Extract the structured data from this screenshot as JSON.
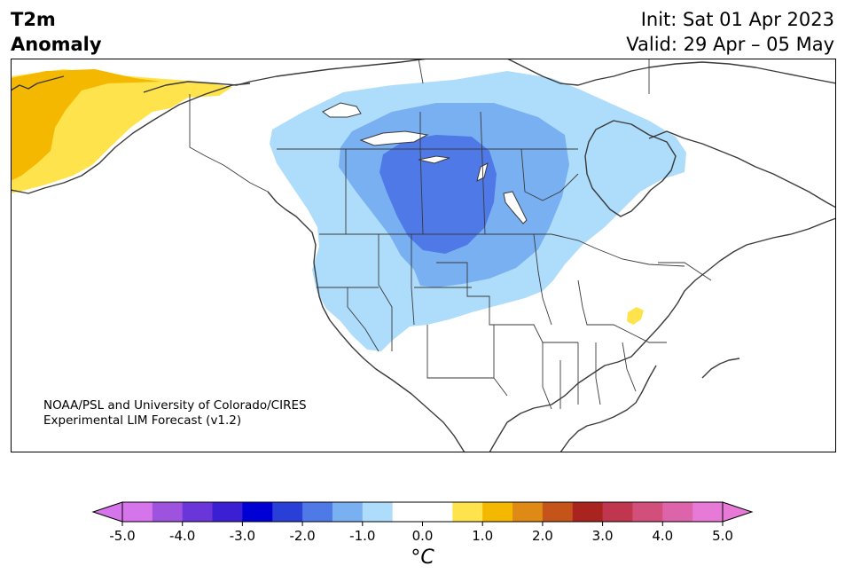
{
  "header": {
    "variable": "T2m",
    "subtitle": "Anomaly",
    "init": "Init: Sat 01 Apr 2023",
    "valid": "Valid: 29 Apr – 05 May"
  },
  "credit": {
    "line1": "NOAA/PSL and University of Colorado/CIRES",
    "line2": "Experimental LIM Forecast (v1.2)"
  },
  "colorbar": {
    "unit": "°C",
    "ticks": [
      "-5.0",
      "-4.0",
      "-3.0",
      "-2.0",
      "-1.0",
      "0.0",
      "1.0",
      "2.0",
      "3.0",
      "4.0",
      "5.0"
    ],
    "colors": [
      "#d675eb",
      "#9e53de",
      "#6a35d9",
      "#3a1fd3",
      "#0000d4",
      "#2a3ed8",
      "#4e79e6",
      "#79b0f2",
      "#aedcfb",
      "#ffffff",
      "#ffffff",
      "#ffe34c",
      "#f5b800",
      "#df8a14",
      "#c4541a",
      "#a9241f",
      "#c0364f",
      "#d14f7a",
      "#dd64aa",
      "#e67ad6"
    ],
    "under_color": "#d675eb",
    "over_color": "#e67ad6"
  },
  "map_data": {
    "region": "North America",
    "legend_levels": [
      -5.0,
      -4.5,
      -4.0,
      -3.5,
      -3.0,
      -2.5,
      -2.0,
      -1.5,
      -1.0,
      -0.5,
      0.0,
      0.5,
      1.0,
      1.5,
      2.0,
      2.5,
      3.0,
      3.5,
      4.0,
      4.5,
      5.0
    ],
    "colors": {
      "warm_light": "#ffe34c",
      "warm_mid": "#f5b800",
      "cool_light": "#aedcfb",
      "cool_mid": "#79b0f2",
      "cool_strong": "#4e79e6",
      "coast": "#3a3a3a"
    }
  }
}
